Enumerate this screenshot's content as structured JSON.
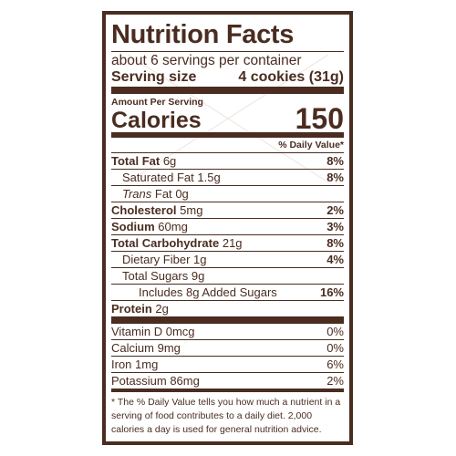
{
  "label": {
    "title": "Nutrition Facts",
    "servings": "about 6 servings per container",
    "serving_size_label": "Serving size",
    "serving_size_value": "4 cookies (31g)",
    "amount_per_serving": "Amount Per Serving",
    "calories_label": "Calories",
    "calories_value": 150,
    "dv_header": "% Daily Value*",
    "nutrients": [
      {
        "name": "Total Fat",
        "amount": "6g",
        "dv": "8%",
        "bold": true,
        "indent": 0
      },
      {
        "name": "Saturated Fat",
        "amount": "1.5g",
        "dv": "8%",
        "bold": false,
        "indent": 1
      },
      {
        "name_italic": "Trans",
        "name": "Fat",
        "amount": "0g",
        "bold": false,
        "indent": 1
      },
      {
        "name": "Cholesterol",
        "amount": "5mg",
        "dv": "2%",
        "bold": true,
        "indent": 0
      },
      {
        "name": "Sodium",
        "amount": "60mg",
        "dv": "3%",
        "bold": true,
        "indent": 0
      },
      {
        "name": "Total Carbohydrate",
        "amount": "21g",
        "dv": "8%",
        "bold": true,
        "indent": 0
      },
      {
        "name": "Dietary Fiber",
        "amount": "1g",
        "dv": "4%",
        "bold": false,
        "indent": 1
      },
      {
        "name": "Total Sugars",
        "amount": "9g",
        "bold": false,
        "indent": 1
      },
      {
        "name": "Includes 8g Added Sugars",
        "dv": "16%",
        "bold": false,
        "indent": 2
      },
      {
        "name": "Protein",
        "amount": "2g",
        "bold": true,
        "indent": 0
      }
    ],
    "vitamins": [
      {
        "name": "Vitamin D",
        "amount": "0mcg",
        "dv": "0%"
      },
      {
        "name": "Calcium",
        "amount": "9mg",
        "dv": "0%"
      },
      {
        "name": "Iron",
        "amount": "1mg",
        "dv": "6%"
      },
      {
        "name": "Potassium",
        "amount": "86mg",
        "dv": "2%"
      }
    ],
    "footnote": "* The % Daily Value tells you how much a nutrient in a serving of food contributes to a daily diet. 2,000 calories a day is used for general nutrition advice."
  }
}
